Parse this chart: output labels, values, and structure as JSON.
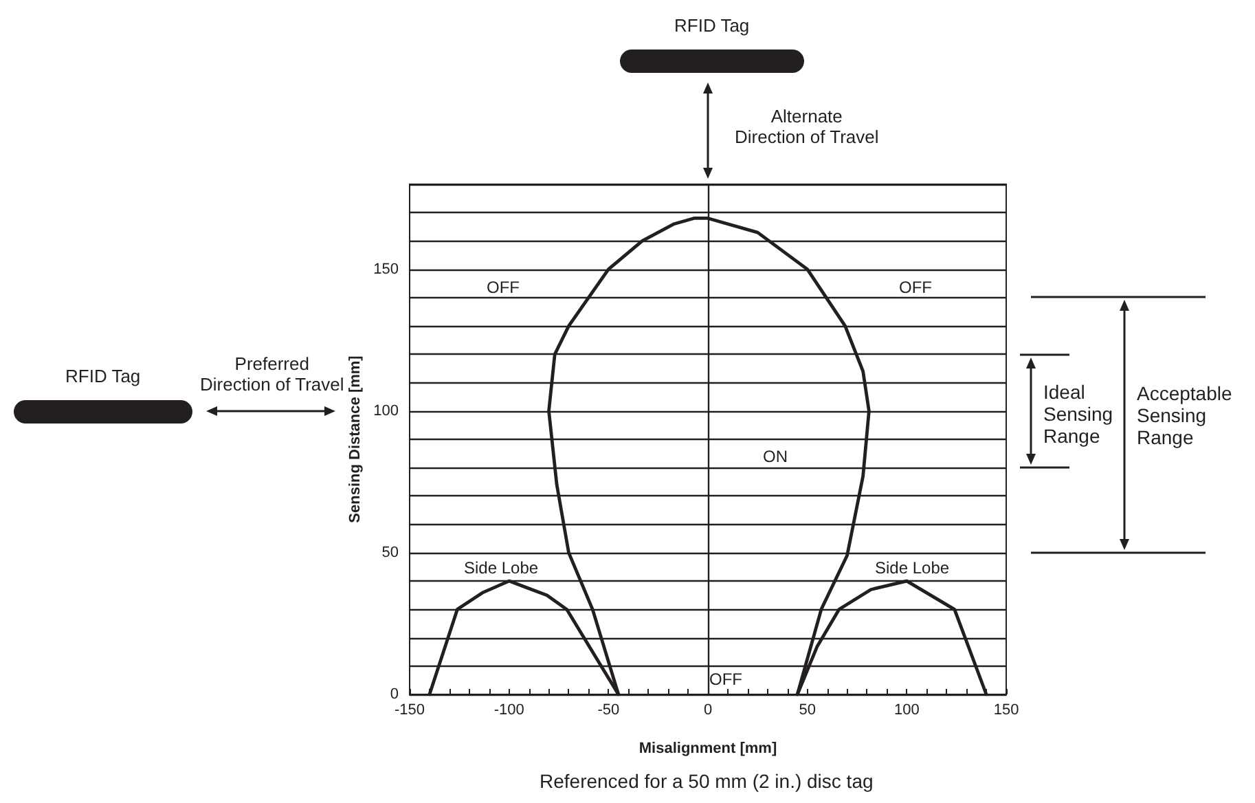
{
  "chart_data": {
    "type": "line",
    "xlabel": "Misalignment [mm]",
    "ylabel": "Sensing Distance [mm]",
    "xlim": [
      -150,
      150
    ],
    "ylim": [
      0,
      180
    ],
    "xticks": [
      -150,
      {
        "value": -140,
        "label": null
      },
      {
        "value": -130,
        "label": null
      },
      {
        "value": -120,
        "label": null
      },
      {
        "value": -110,
        "label": null
      },
      -100,
      {
        "value": -90,
        "label": null
      },
      {
        "value": -80,
        "label": null
      },
      {
        "value": -70,
        "label": null
      },
      {
        "value": -60,
        "label": null
      },
      -50,
      {
        "value": -40,
        "label": null
      },
      {
        "value": -30,
        "label": null
      },
      {
        "value": -20,
        "label": null
      },
      {
        "value": -10,
        "label": null
      },
      0,
      {
        "value": 10,
        "label": null
      },
      {
        "value": 20,
        "label": null
      },
      {
        "value": 30,
        "label": null
      },
      {
        "value": 40,
        "label": null
      },
      50,
      {
        "value": 60,
        "label": null
      },
      {
        "value": 70,
        "label": null
      },
      {
        "value": 80,
        "label": null
      },
      {
        "value": 90,
        "label": null
      },
      100,
      {
        "value": 110,
        "label": null
      },
      {
        "value": 120,
        "label": null
      },
      {
        "value": 130,
        "label": null
      },
      {
        "value": 140,
        "label": null
      },
      150
    ],
    "yticks": [
      0,
      {
        "value": 10,
        "label": null
      },
      {
        "value": 20,
        "label": null
      },
      {
        "value": 30,
        "label": null
      },
      {
        "value": 40,
        "label": null
      },
      50,
      {
        "value": 60,
        "label": null
      },
      {
        "value": 70,
        "label": null
      },
      {
        "value": 80,
        "label": null
      },
      {
        "value": 90,
        "label": null
      },
      100,
      {
        "value": 110,
        "label": null
      },
      {
        "value": 120,
        "label": null
      },
      {
        "value": 130,
        "label": null
      },
      {
        "value": 140,
        "label": null
      },
      150,
      {
        "value": 160,
        "label": null
      },
      {
        "value": 170,
        "label": null
      },
      {
        "value": 180,
        "label": null
      }
    ],
    "grid": "y",
    "marker": "none",
    "line_style": "solid",
    "series": [
      {
        "color": "#231f20",
        "x": [
          -45,
          -58,
          -70,
          -76,
          -80,
          -77,
          -70,
          -60,
          -50,
          -33,
          -17,
          -7,
          0,
          25,
          50,
          69,
          78,
          81,
          78,
          70,
          57,
          45
        ],
        "values": [
          0,
          30,
          50,
          74,
          100,
          120,
          130,
          140,
          150,
          160,
          166,
          168,
          168,
          163,
          150,
          130,
          114,
          100,
          77,
          49,
          30,
          0
        ]
      },
      {
        "color": "#231f20",
        "x": [
          -140,
          -126,
          -113,
          -100,
          -81,
          -71,
          -58,
          -45
        ],
        "values": [
          0,
          30,
          36,
          40,
          35,
          30,
          15,
          0
        ]
      },
      {
        "color": "#231f20",
        "x": [
          45,
          55,
          66,
          82,
          100,
          124,
          140
        ],
        "values": [
          0,
          17,
          30,
          37,
          40,
          30,
          0
        ]
      }
    ],
    "ref_lines": [
      {
        "axis": "x",
        "value": 0
      }
    ],
    "annotations": [
      "RFID Tag",
      "Alternate\nDirection of Travel",
      "RFID Tag",
      "Preferred\nDirection of Travel",
      "Referenced for a 50 mm (2 in.) disc tag",
      "OFF",
      "OFF",
      "ON",
      "OFF",
      "Side Lobe",
      "Side Lobe",
      "Ideal\nSensing\nRange",
      "Acceptable\nSensing\nRange"
    ]
  }
}
